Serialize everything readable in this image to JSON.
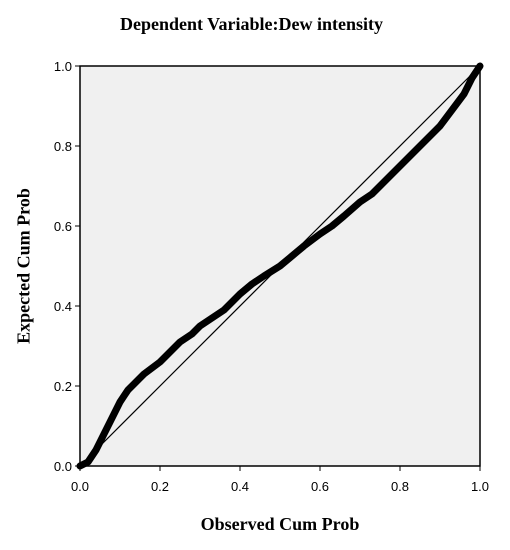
{
  "chart_data": {
    "type": "line",
    "title": "Dependent Variable:Dew intensity",
    "xlabel": "Observed Cum Prob",
    "ylabel": "Expected Cum Prob",
    "xlim": [
      0,
      1
    ],
    "ylim": [
      0,
      1
    ],
    "xticks": [
      "0.0",
      "0.2",
      "0.4",
      "0.6",
      "0.8",
      "1.0"
    ],
    "yticks": [
      "0.0",
      "0.2",
      "0.4",
      "0.6",
      "0.8",
      "1.0"
    ],
    "background": "#f0f0f0",
    "grid": false,
    "reference_line": {
      "x": [
        0,
        1
      ],
      "y": [
        0,
        1
      ],
      "color": "#000000"
    },
    "series": [
      {
        "color": "#000000",
        "x": [
          0.0,
          0.02,
          0.04,
          0.06,
          0.08,
          0.1,
          0.12,
          0.14,
          0.16,
          0.18,
          0.2,
          0.22,
          0.25,
          0.28,
          0.3,
          0.33,
          0.36,
          0.4,
          0.43,
          0.46,
          0.5,
          0.53,
          0.56,
          0.6,
          0.63,
          0.66,
          0.7,
          0.73,
          0.76,
          0.8,
          0.83,
          0.86,
          0.9,
          0.93,
          0.96,
          0.98,
          1.0
        ],
        "y": [
          0.0,
          0.01,
          0.04,
          0.08,
          0.12,
          0.16,
          0.19,
          0.21,
          0.23,
          0.245,
          0.26,
          0.28,
          0.31,
          0.33,
          0.35,
          0.37,
          0.39,
          0.43,
          0.455,
          0.475,
          0.5,
          0.525,
          0.55,
          0.58,
          0.6,
          0.625,
          0.66,
          0.68,
          0.71,
          0.75,
          0.78,
          0.81,
          0.85,
          0.89,
          0.93,
          0.97,
          1.0
        ]
      }
    ]
  }
}
